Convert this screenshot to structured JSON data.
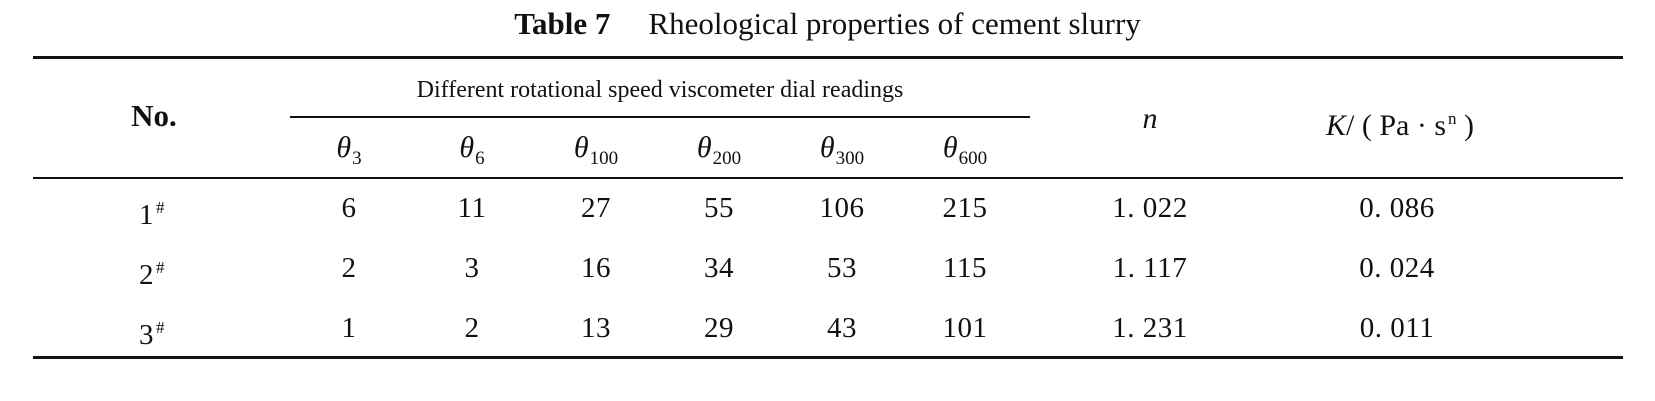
{
  "caption": {
    "label": "Table 7",
    "title": "Rheological properties of cement slurry"
  },
  "table": {
    "col_no": "No.",
    "group_header": "Different rotational speed viscometer dial readings",
    "theta_symbol": "θ",
    "theta_subscripts": [
      "3",
      "6",
      "100",
      "200",
      "300",
      "600"
    ],
    "col_n": "n",
    "col_k": {
      "symbol": "K",
      "unit_prefix": "/ ( Pa · s",
      "unit_power": "n",
      "unit_suffix": " )"
    },
    "rows": [
      {
        "no": "1",
        "mark": "#",
        "readings": [
          "6",
          "11",
          "27",
          "55",
          "106",
          "215"
        ],
        "n": "1. 022",
        "k": "0. 086"
      },
      {
        "no": "2",
        "mark": "#",
        "readings": [
          "2",
          "3",
          "16",
          "34",
          "53",
          "115"
        ],
        "n": "1. 117",
        "k": "0. 024"
      },
      {
        "no": "3",
        "mark": "#",
        "readings": [
          "1",
          "2",
          "13",
          "29",
          "43",
          "101"
        ],
        "n": "1. 231",
        "k": "0. 011"
      }
    ]
  }
}
